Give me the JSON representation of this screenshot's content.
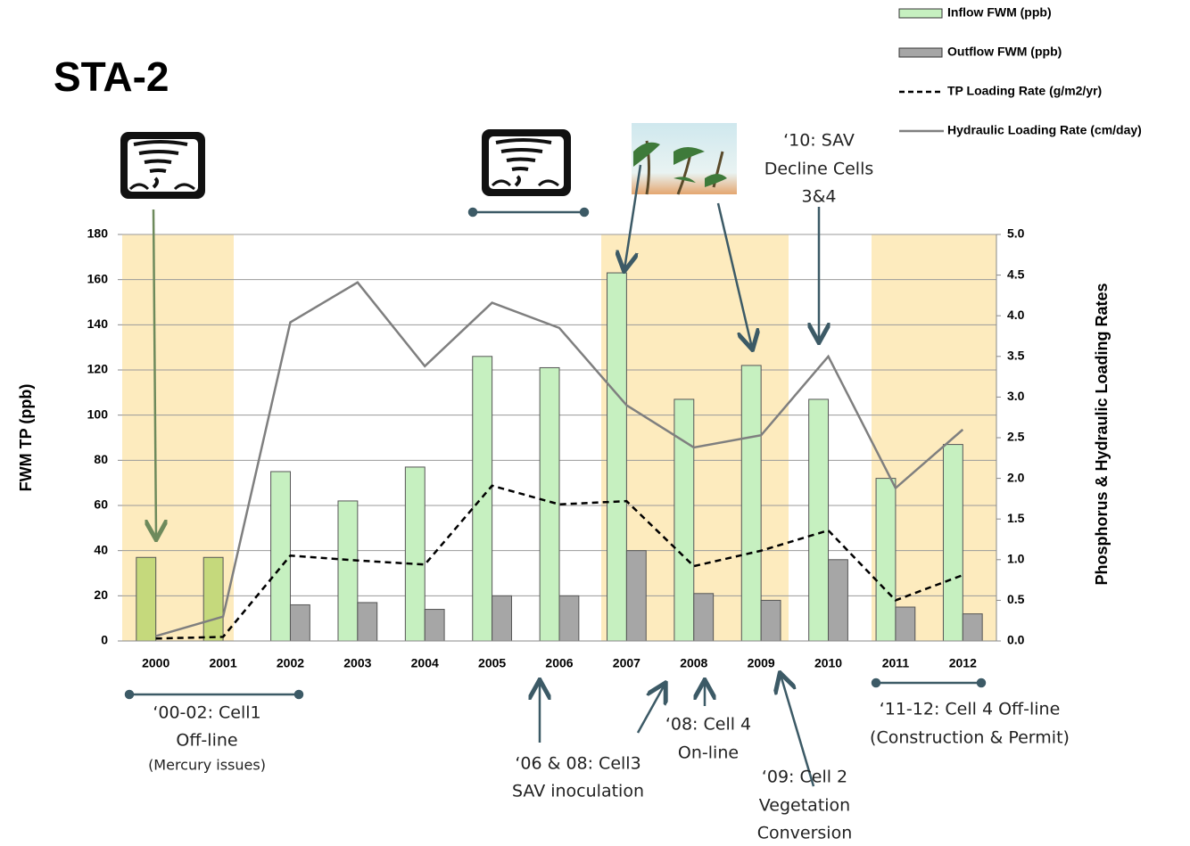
{
  "chart_data": {
    "type": "bar-line",
    "title": "STA-2",
    "y_label": "FWM TP (ppb)",
    "y2_label": "Phosphorus & Hydraulic Loading Rates",
    "categories": [
      "2000",
      "2001",
      "2002",
      "2003",
      "2004",
      "2005",
      "2006",
      "2007",
      "2008",
      "2009",
      "2010",
      "2011",
      "2012"
    ],
    "series": [
      {
        "name": "Inflow FWM (ppb)",
        "type": "bar",
        "color": "#c6f0c0",
        "colors": [
          "#c5d97c",
          "#c5d97c",
          "#c6f0c0",
          "#c6f0c0",
          "#c6f0c0",
          "#c6f0c0",
          "#c6f0c0",
          "#c6f0c0",
          "#c6f0c0",
          "#c6f0c0",
          "#c6f0c0",
          "#c6f0c0",
          "#c6f0c0"
        ],
        "values": [
          37,
          37,
          75,
          62,
          77,
          126,
          121,
          163,
          107,
          122,
          107,
          72,
          87
        ]
      },
      {
        "name": "Outflow FWM (ppb)",
        "type": "bar",
        "color": "#a6a6a6",
        "values": [
          null,
          null,
          16,
          17,
          14,
          20,
          20,
          40,
          21,
          18,
          36,
          15,
          12
        ]
      },
      {
        "name": "TP Loading Rate (g/m2/yr)",
        "type": "line",
        "axis": "y2",
        "color": "#000000",
        "dashed": true,
        "values": [
          0.03,
          0.05,
          1.05,
          0.99,
          0.94,
          1.91,
          1.68,
          1.72,
          0.92,
          1.11,
          1.36,
          0.5,
          0.81
        ]
      },
      {
        "name": "Hydraulic Loading Rate (cm/day)",
        "type": "line",
        "axis": "y2",
        "color": "#7f7f7f",
        "dashed": false,
        "values": [
          0.06,
          0.3,
          3.92,
          4.41,
          3.38,
          4.16,
          3.85,
          2.9,
          2.38,
          2.53,
          3.5,
          1.88,
          2.6
        ]
      }
    ],
    "ylim": [
      0,
      180
    ],
    "yticks": [
      0,
      20,
      40,
      60,
      80,
      100,
      120,
      140,
      160,
      180
    ],
    "y2lim": [
      0,
      5
    ],
    "y2ticks": [
      {
        "value": 0,
        "label": "0.0"
      },
      0.5,
      {
        "value": 1,
        "label": "1.0"
      },
      1.5,
      {
        "value": 2,
        "label": "2.0"
      },
      2.5,
      {
        "value": 3,
        "label": "3.0"
      },
      3.5,
      {
        "value": 4,
        "label": "4.0"
      },
      4.5,
      {
        "value": 5,
        "label": "5.0"
      }
    ],
    "grid": true,
    "legend": "top-right",
    "annotations": [
      {
        "lines": [
          "‘10: SAV",
          "Decline Cells",
          "3&4"
        ]
      },
      {
        "lines": [
          "‘00-02: Cell1",
          "Off-line",
          "(Mercury issues)"
        ]
      },
      {
        "lines": [
          "‘06 & 08: Cell3",
          "SAV inoculation"
        ]
      },
      {
        "lines": [
          "‘08: Cell 4",
          "On-line"
        ]
      },
      {
        "lines": [
          "‘09: Cell 2",
          "Vegetation",
          "Conversion"
        ]
      },
      {
        "lines": [
          "‘11-12: Cell 4 Off-line",
          "(Construction & Permit)"
        ]
      }
    ]
  }
}
